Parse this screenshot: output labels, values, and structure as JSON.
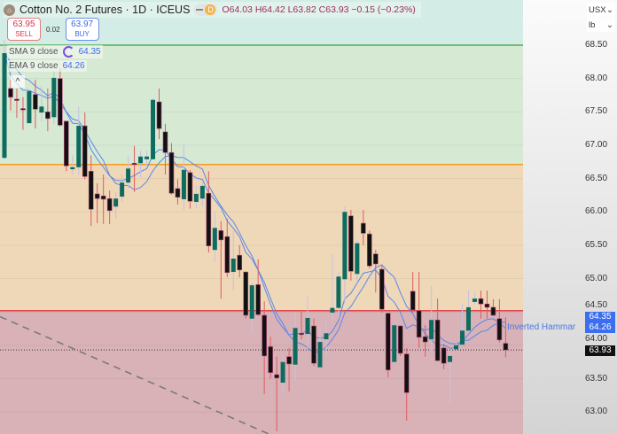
{
  "header": {
    "title": "Cotton No. 2 Futures · 1D · ICEUS",
    "interval_badge": "D",
    "open": "O64.03",
    "high": "H64.42",
    "low": "L63.82",
    "close": "C63.93",
    "change": "−0.15 (−0.23%)"
  },
  "trade": {
    "sell_price": "63.95",
    "sell_label": "SELL",
    "spread": "0.02",
    "buy_price": "63.97",
    "buy_label": "BUY"
  },
  "legend": [
    {
      "name": "SMA 9 close",
      "value": "64.35"
    },
    {
      "name": "EMA 9 close",
      "value": "64.26"
    }
  ],
  "collapse_icon": "^",
  "axis": {
    "currency": "USX",
    "unit": "lb",
    "ticks": [
      "68.50",
      "68.00",
      "67.50",
      "67.00",
      "66.50",
      "66.00",
      "65.50",
      "65.00",
      "64.50",
      "64.00",
      "63.50",
      "63.00"
    ],
    "sma_label": "64.35",
    "ema_label": "64.26",
    "last_label": "63.93"
  },
  "annotation": "Inverted Hammar",
  "colors": {
    "bull": "#0e6b5f",
    "bear": "#111111",
    "bear_wick": "#e05a62",
    "bull_wick": "#c9bfe0",
    "ma": "#5b86ea",
    "level_green": "#4caf50",
    "level_orange": "#f59a1f",
    "level_red": "#e04848",
    "zone_green": "#d6e9d3",
    "zone_tan": "#eed8b8",
    "zone_pink": "#d8b2b6",
    "top_bg": "#d3ece5"
  },
  "chart_data": {
    "type": "candlestick",
    "ylim": [
      62.8,
      69.1
    ],
    "levels": [
      {
        "price": 68.5,
        "color": "level_green"
      },
      {
        "price": 66.71,
        "color": "level_orange"
      },
      {
        "price": 64.52,
        "color": "level_red"
      }
    ],
    "last_price": 63.93,
    "trendline": {
      "from": [
        0,
        64.4
      ],
      "to": [
        42,
        62.7
      ]
    },
    "indicators": [
      "SMA 9 close",
      "EMA 9 close"
    ],
    "ohlc": [
      [
        66.81,
        68.58,
        66.79,
        68.38
      ],
      [
        67.85,
        67.98,
        67.52,
        67.72
      ],
      [
        67.69,
        67.85,
        67.41,
        67.67
      ],
      [
        67.55,
        67.72,
        67.23,
        67.53
      ],
      [
        67.33,
        67.81,
        67.33,
        67.81
      ],
      [
        67.76,
        67.98,
        67.25,
        67.54
      ],
      [
        67.49,
        67.89,
        67.36,
        67.58
      ],
      [
        67.5,
        67.85,
        67.21,
        67.4
      ],
      [
        67.42,
        68.12,
        67.32,
        68.01
      ],
      [
        68.0,
        68.15,
        67.28,
        67.3
      ],
      [
        67.36,
        67.36,
        66.61,
        66.69
      ],
      [
        66.64,
        66.85,
        66.56,
        66.67
      ],
      [
        66.67,
        67.58,
        66.56,
        67.29
      ],
      [
        67.29,
        67.49,
        66.49,
        66.53
      ],
      [
        66.61,
        66.85,
        65.79,
        66.04
      ],
      [
        66.27,
        66.43,
        65.83,
        66.2
      ],
      [
        66.24,
        66.56,
        65.82,
        66.19
      ],
      [
        66.2,
        66.32,
        65.82,
        66.02
      ],
      [
        66.08,
        66.3,
        65.9,
        66.2
      ],
      [
        66.23,
        66.56,
        66.15,
        66.44
      ],
      [
        66.44,
        66.83,
        66.35,
        66.65
      ],
      [
        66.73,
        66.99,
        66.3,
        66.72
      ],
      [
        66.73,
        66.92,
        66.52,
        66.83
      ],
      [
        66.79,
        66.92,
        66.69,
        66.83
      ],
      [
        66.79,
        67.7,
        66.79,
        67.68
      ],
      [
        67.65,
        67.85,
        67.09,
        67.25
      ],
      [
        67.2,
        67.32,
        66.56,
        66.89
      ],
      [
        66.89,
        67.03,
        66.26,
        66.28
      ],
      [
        66.35,
        66.49,
        66.11,
        66.22
      ],
      [
        66.19,
        67.01,
        66.03,
        66.63
      ],
      [
        66.59,
        66.63,
        66.05,
        66.16
      ],
      [
        66.15,
        66.39,
        66.05,
        66.27
      ],
      [
        66.2,
        66.45,
        66.08,
        66.39
      ],
      [
        66.28,
        66.61,
        65.39,
        65.49
      ],
      [
        65.43,
        65.99,
        65.26,
        65.76
      ],
      [
        65.72,
        65.86,
        64.7,
        65.58
      ],
      [
        65.63,
        65.9,
        65.02,
        65.09
      ],
      [
        65.1,
        65.72,
        64.82,
        65.3
      ],
      [
        65.35,
        65.5,
        65.02,
        65.13
      ],
      [
        65.1,
        65.1,
        64.4,
        64.45
      ],
      [
        64.4,
        64.93,
        64.17,
        64.9
      ],
      [
        64.91,
        65.29,
        64.44,
        64.46
      ],
      [
        64.45,
        64.66,
        63.27,
        63.84
      ],
      [
        63.98,
        64.13,
        63.5,
        63.59
      ],
      [
        63.56,
        63.83,
        62.71,
        63.51
      ],
      [
        63.44,
        63.84,
        63.27,
        63.75
      ],
      [
        63.83,
        63.96,
        63.31,
        63.72
      ],
      [
        63.71,
        64.49,
        63.47,
        64.26
      ],
      [
        64.18,
        64.53,
        64.09,
        64.16
      ],
      [
        64.17,
        64.73,
        63.96,
        64.41
      ],
      [
        64.29,
        64.4,
        63.69,
        63.73
      ],
      [
        63.67,
        64.3,
        63.64,
        64.05
      ],
      [
        64.09,
        64.4,
        63.83,
        64.18
      ],
      [
        64.49,
        65.37,
        64.36,
        64.56
      ],
      [
        64.56,
        65.1,
        64.4,
        65.03
      ],
      [
        64.99,
        66.08,
        64.62,
        66.0
      ],
      [
        65.94,
        66.03,
        64.97,
        65.11
      ],
      [
        65.07,
        65.59,
        64.93,
        65.53
      ],
      [
        65.83,
        66.03,
        65.5,
        65.68
      ],
      [
        65.67,
        65.72,
        65.15,
        65.19
      ],
      [
        65.37,
        65.43,
        64.79,
        65.22
      ],
      [
        65.14,
        65.19,
        64.49,
        64.54
      ],
      [
        64.48,
        64.49,
        63.52,
        63.63
      ],
      [
        63.75,
        64.3,
        63.73,
        64.3
      ],
      [
        64.29,
        64.3,
        63.84,
        63.88
      ],
      [
        63.87,
        63.96,
        62.87,
        63.29
      ],
      [
        64.81,
        65.1,
        64.49,
        64.53
      ],
      [
        64.52,
        65.1,
        63.96,
        64.12
      ],
      [
        64.13,
        64.3,
        63.83,
        64.05
      ],
      [
        64.09,
        64.89,
        63.91,
        64.38
      ],
      [
        64.38,
        64.7,
        63.76,
        63.77
      ],
      [
        63.96,
        64.02,
        63.64,
        63.73
      ],
      [
        63.75,
        63.91,
        63.11,
        63.84
      ],
      [
        63.94,
        64.04,
        63.93,
        64.0
      ],
      [
        64.01,
        64.62,
        64.0,
        64.22
      ],
      [
        64.22,
        64.82,
        64.22,
        64.57
      ],
      [
        64.65,
        64.79,
        64.62,
        64.7
      ],
      [
        64.7,
        64.82,
        64.4,
        64.62
      ],
      [
        64.62,
        64.82,
        64.4,
        64.57
      ],
      [
        64.57,
        64.69,
        64.44,
        64.45
      ],
      [
        64.4,
        64.69,
        64.04,
        64.08
      ],
      [
        64.03,
        64.42,
        63.82,
        63.93
      ]
    ]
  }
}
